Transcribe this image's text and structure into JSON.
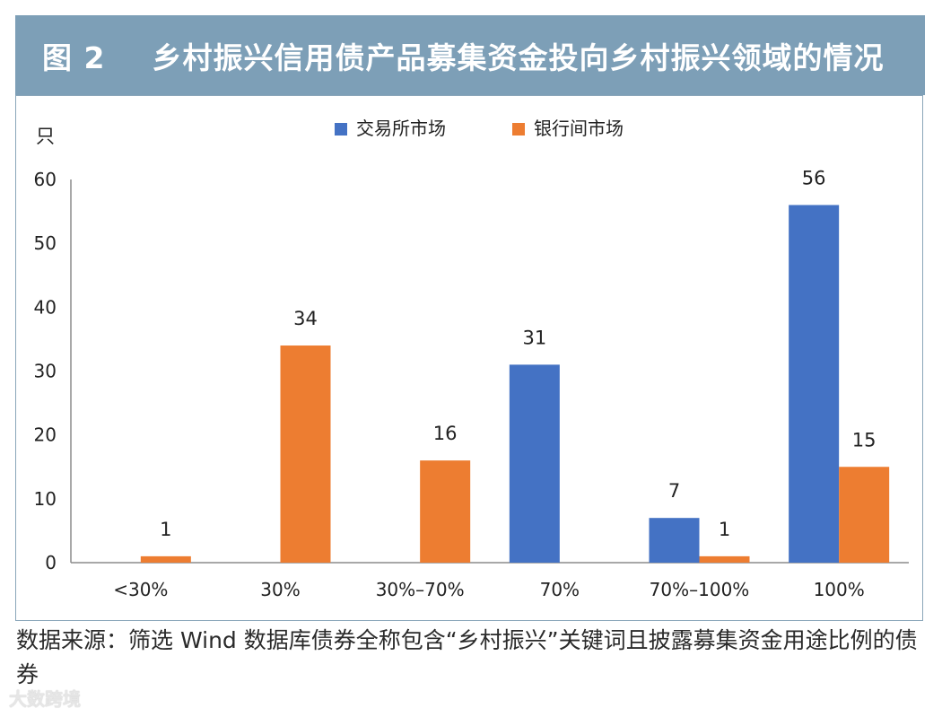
{
  "figure": {
    "number": "图 2",
    "title": "乡村振兴信用债产品募集资金投向乡村振兴领域的情况"
  },
  "chart_data": {
    "type": "bar",
    "y_unit": "只",
    "ylim": [
      0,
      60
    ],
    "yticks": [
      "0",
      "10",
      "20",
      "30",
      "40",
      "50",
      "60"
    ],
    "categories": [
      "<30%",
      "30%",
      "30%–70%",
      "70%",
      "70%–100%",
      "100%"
    ],
    "series": [
      {
        "name": "交易所市场",
        "color": "#4472c4",
        "values": [
          null,
          null,
          null,
          31,
          7,
          56
        ]
      },
      {
        "name": "银行间市场",
        "color": "#ed7d31",
        "values": [
          1,
          34,
          16,
          null,
          1,
          15
        ]
      }
    ],
    "legend_position": "top",
    "grid": false
  },
  "source_note": "数据来源：筛选 Wind 数据库债券全称包含“乡村振兴”关键词且披露募集资金用途比例的债券",
  "watermark": "大数跨境",
  "colors": {
    "title_bar": "#7d9fb7",
    "exchange": "#4472c4",
    "interbank": "#ed7d31"
  }
}
